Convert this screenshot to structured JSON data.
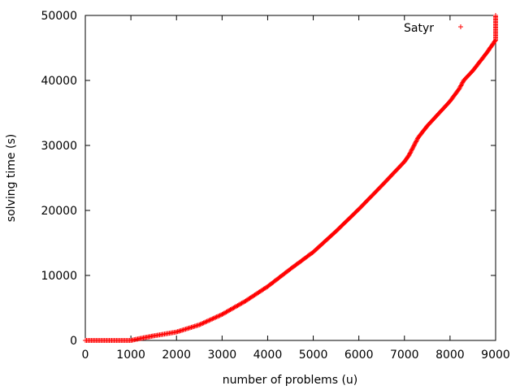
{
  "chart_data": {
    "type": "scatter",
    "xlabel": "number of problems (u)",
    "ylabel": "solving time (s)",
    "xlim": [
      0,
      9000
    ],
    "ylim": [
      0,
      50000
    ],
    "xticks": [
      0,
      1000,
      2000,
      3000,
      4000,
      5000,
      6000,
      7000,
      8000,
      9000
    ],
    "yticks": [
      0,
      10000,
      20000,
      30000,
      40000,
      50000
    ],
    "grid": false,
    "legend_position": "top-right",
    "series": [
      {
        "name": "Satyr",
        "color": "#ff0000",
        "marker": "plus",
        "points": [
          [
            0,
            0
          ],
          [
            500,
            0
          ],
          [
            1000,
            0
          ],
          [
            1100,
            150
          ],
          [
            1200,
            300
          ],
          [
            1500,
            700
          ],
          [
            2000,
            1300
          ],
          [
            2500,
            2400
          ],
          [
            3000,
            4000
          ],
          [
            3500,
            6000
          ],
          [
            4000,
            8300
          ],
          [
            4500,
            11000
          ],
          [
            5000,
            13600
          ],
          [
            5500,
            16800
          ],
          [
            6000,
            20200
          ],
          [
            6500,
            23800
          ],
          [
            7000,
            27500
          ],
          [
            7100,
            28500
          ],
          [
            7300,
            31200
          ],
          [
            7500,
            33000
          ],
          [
            8000,
            36800
          ],
          [
            8200,
            38700
          ],
          [
            8300,
            40000
          ],
          [
            8500,
            41500
          ],
          [
            8800,
            44200
          ],
          [
            9000,
            46200
          ],
          [
            9000,
            50000
          ]
        ]
      }
    ]
  }
}
